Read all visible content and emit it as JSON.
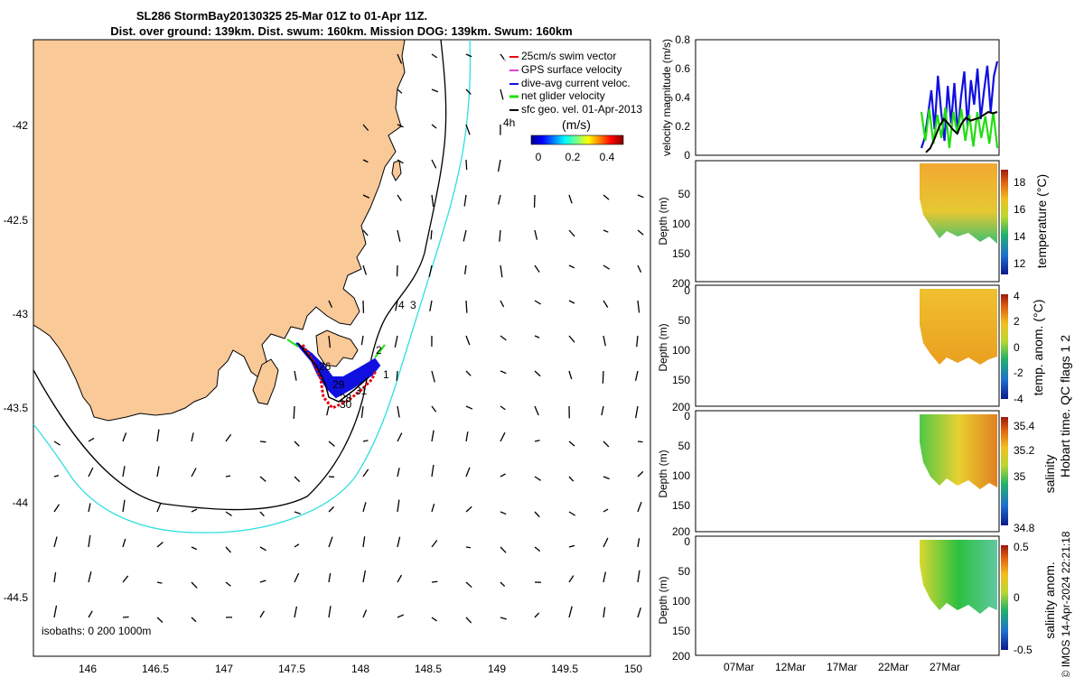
{
  "title_line1": "SL286 StormBay20130325 25-Mar 01Z to 01-Apr 11Z.",
  "title_line2": "Dist. over ground: 139km. Dist. swum: 160km. Mission DOG: 139km. Swum: 160km",
  "map": {
    "lon_ticks": [
      "146",
      "146.5",
      "147",
      "147.5",
      "148",
      "148.5",
      "149",
      "149.5",
      "150"
    ],
    "lat_ticks": [
      "-42",
      "-42.5",
      "-43",
      "-43.5",
      "-44",
      "-44.5"
    ],
    "legend": [
      {
        "label": "25cm/s swim vector",
        "color": "#e8000b"
      },
      {
        "label": "GPS surface velocity",
        "color": "#e040e0"
      },
      {
        "label": "dive-avg current veloc.",
        "color": "#1010e0"
      },
      {
        "label": "net glider velocity",
        "color": "#22dd11"
      },
      {
        "label": "sfc geo. vel. 01-Apr-2013",
        "color": "#000000"
      }
    ],
    "colorbar_unit": "(m/s)",
    "colorbar_ticks": [
      "0",
      "0.2",
      "0.4"
    ],
    "isobath_note": "isobaths: 0   200  1000m",
    "hour_label": "4h",
    "day_labels": [
      "26",
      "29",
      "28",
      "31",
      "30",
      "1",
      "2",
      "4",
      "3"
    ],
    "land_color": "#f9c998",
    "isobath_200_color": "#000000",
    "isobath_1000_color": "#30dede"
  },
  "chart_data": [
    {
      "type": "line",
      "title": "",
      "ylabel": "velocity magnitude (m/s)",
      "ylim": [
        0,
        0.8
      ],
      "yticks": [
        "0",
        "0.2",
        "0.4",
        "0.6",
        "0.8"
      ],
      "series": [
        {
          "name": "dive-avg current veloc.",
          "color": "#1010e0",
          "y": [
            0.05,
            0.12,
            0.28,
            0.45,
            0.18,
            0.55,
            0.3,
            0.1,
            0.48,
            0.22,
            0.5,
            0.15,
            0.4,
            0.58,
            0.2,
            0.52,
            0.35,
            0.6,
            0.25,
            0.45,
            0.62,
            0.3,
            0.55,
            0.65
          ]
        },
        {
          "name": "net glider velocity",
          "color": "#22dd11",
          "y": [
            0.3,
            0.1,
            0.32,
            0.08,
            0.28,
            0.12,
            0.33,
            0.05,
            0.3,
            0.15,
            0.32,
            0.1,
            0.28,
            0.06,
            0.3,
            0.12,
            0.27,
            0.08,
            0.3,
            0.05
          ]
        },
        {
          "name": "sfc geo. vel.",
          "color": "#000000",
          "y": [
            0.02,
            0.05,
            0.12,
            0.2,
            0.25,
            0.22,
            0.18,
            0.15,
            0.22,
            0.26,
            0.24,
            0.25,
            0.26,
            0.28,
            0.3,
            0.29,
            0.3
          ]
        }
      ]
    },
    {
      "type": "heatmap",
      "ylabel": "Depth (m)",
      "yticks": [
        "50",
        "100",
        "150",
        "200"
      ],
      "ylim": [
        0,
        200
      ],
      "colorbar_label": "temperature (°C)",
      "colorbar_ticks": [
        "12",
        "14",
        "16",
        "18"
      ],
      "xticks": [
        "07Mar",
        "12Mar",
        "17Mar",
        "22Mar",
        "27Mar"
      ]
    },
    {
      "type": "heatmap",
      "ylabel": "Depth (m)",
      "yticks": [
        "0",
        "50",
        "100",
        "150",
        "200"
      ],
      "ylim": [
        0,
        200
      ],
      "colorbar_label": "temp. anom. (°C)",
      "colorbar_ticks": [
        "-4",
        "-2",
        "0",
        "2",
        "4"
      ]
    },
    {
      "type": "heatmap",
      "ylabel": "Depth (m)",
      "yticks": [
        "0",
        "50",
        "100",
        "150",
        "200"
      ],
      "ylim": [
        0,
        200
      ],
      "colorbar_label": "salinity",
      "colorbar_ticks": [
        "34.8",
        "35",
        "35.2",
        "35.4"
      ]
    },
    {
      "type": "heatmap",
      "ylabel": "Depth (m)",
      "yticks": [
        "0",
        "50",
        "100",
        "150",
        "200"
      ],
      "ylim": [
        0,
        200
      ],
      "colorbar_label": "salinity anom.",
      "colorbar_ticks": [
        "-0.5",
        "0",
        "0.5"
      ],
      "xticks": [
        "07Mar",
        "12Mar",
        "17Mar",
        "22Mar",
        "27Mar"
      ]
    }
  ],
  "side_note_1": "temp. anom. (°C)",
  "qc_note": "Hobart time. QC flags 1  2",
  "footer_note": "© IMOS 14-Apr-2024 22:21:18"
}
